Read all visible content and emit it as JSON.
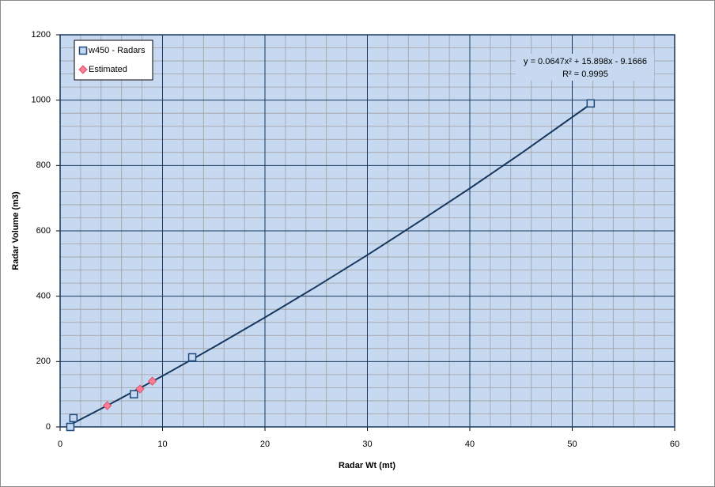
{
  "chart_data": {
    "type": "scatter",
    "xlabel": "Radar Wt (mt)",
    "ylabel": "Radar Volume (m3)",
    "xlim": [
      0,
      60
    ],
    "xticks": [
      0,
      10,
      20,
      30,
      40,
      50,
      60
    ],
    "ylim": [
      0,
      1200
    ],
    "yticks": [
      0,
      200,
      400,
      600,
      800,
      1000,
      1200
    ],
    "grid": true,
    "minor_grid": true,
    "legend": "top-left",
    "background": "#c6d9f0",
    "series": [
      {
        "name": "w450 - Radars",
        "color": "#1f497d",
        "marker": "square",
        "x": [
          1.0,
          1.3,
          7.2,
          12.9,
          51.8
        ],
        "values": [
          0,
          27,
          100,
          213,
          990
        ]
      },
      {
        "name": "Estimated",
        "color": "#ff7c96",
        "marker": "diamond",
        "x": [
          4.6,
          7.8,
          9.0
        ],
        "values": [
          65,
          116,
          140
        ]
      }
    ],
    "trendline": {
      "color": "#17375e",
      "x": [
        1,
        5,
        10,
        15,
        20,
        25,
        30,
        35,
        40,
        45,
        51.8
      ],
      "values": [
        7,
        72,
        156,
        244,
        335,
        429,
        526,
        627,
        730,
        837,
        988
      ],
      "equation": "y = 0.0647x² + 15.898x - 9.1666",
      "r2": "R² = 0.9995"
    }
  }
}
